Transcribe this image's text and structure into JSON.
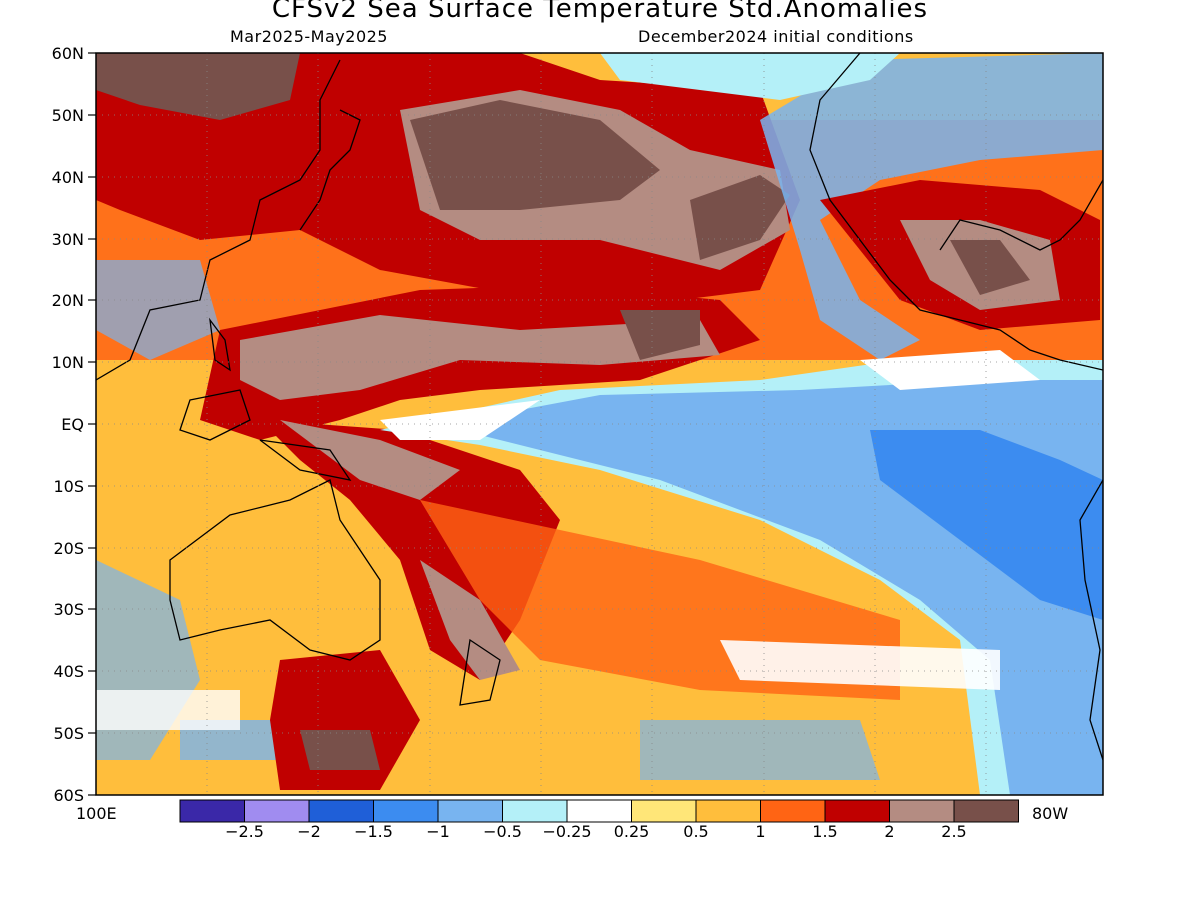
{
  "header": {
    "title": "CFSv2 Sea Surface Temperature Std.Anomalies",
    "period": "Mar2025-May2025",
    "initial_conditions": "December2024 initial conditions"
  },
  "map": {
    "lon_labels": {
      "left": "100E",
      "right": "80W"
    },
    "lat_labels": [
      "60N",
      "50N",
      "40N",
      "30N",
      "20N",
      "10N",
      "EQ",
      "10S",
      "20S",
      "30S",
      "40S",
      "50S",
      "60S"
    ],
    "anomaly_fields": [
      {
        "region": "north-pacific-basin",
        "value": "2.5"
      },
      {
        "region": "equatorial-east-pacific-cold-tongue",
        "value": "-1"
      },
      {
        "region": "west-pacific-warm-pool",
        "value": "2"
      },
      {
        "region": "gulf-of-mexico",
        "value": "2.5"
      },
      {
        "region": "southwest-pacific",
        "value": "2"
      },
      {
        "region": "southeast-pacific",
        "value": "-1"
      }
    ]
  },
  "colorbar": {
    "colors": [
      "#3a28a8",
      "#a08cf0",
      "#1f5fd8",
      "#3c8cf0",
      "#78b4f0",
      "#b4f0f8",
      "#ffffff",
      "#ffe678",
      "#ffbe3c",
      "#ff6414",
      "#c00000",
      "#b48c82",
      "#78504a"
    ],
    "labels": [
      "-2.5",
      "-2",
      "-1.5",
      "-1",
      "-0.5",
      "-0.25",
      "0.25",
      "0.5",
      "1",
      "1.5",
      "2",
      "2.5"
    ]
  }
}
